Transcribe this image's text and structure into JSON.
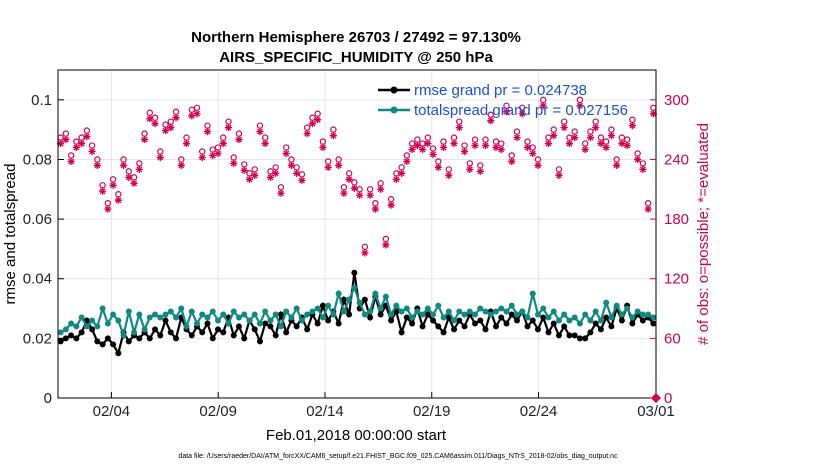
{
  "chart_data": {
    "type": "line",
    "title_line1": "Northern Hemisphere 26703 / 27492 = 97.130%",
    "title_line2": "AIRS_SPECIFIC_HUMIDITY @ 250 hPa",
    "xlabel": "Feb.01,2018 00:00:00 start",
    "ylabel": "rmse and totalspread",
    "ylabel_right": "# of obs: o=possible; *=evaluated",
    "footnote": "data file: /Users/raeder/DAI/ATM_forcXX/CAM6_setup/f.e21.FHIST_BGC.f09_025.CAM6assim.011/Diags_NTrS_2018-02/obs_diag_output.nc",
    "xlim": [
      1.0,
      29.0
    ],
    "xtick_values": [
      3.5,
      8.5,
      13.5,
      18.5,
      23.5,
      29.0
    ],
    "xtick_labels": [
      "02/04",
      "02/09",
      "02/14",
      "02/19",
      "02/24",
      "03/01"
    ],
    "ylim": [
      0,
      0.11
    ],
    "ytick_values": [
      0,
      0.02,
      0.04,
      0.06,
      0.08,
      0.1
    ],
    "ytick_labels": [
      "0",
      "0.02",
      "0.04",
      "0.06",
      "0.08",
      "0.1"
    ],
    "ylim_right": [
      0,
      330
    ],
    "ytick_right_values": [
      0,
      60,
      120,
      180,
      240,
      300
    ],
    "ytick_right_labels": [
      "0",
      "60",
      "120",
      "180",
      "240",
      "300"
    ],
    "series": [
      {
        "name": "rmse grand pr = 0.024738",
        "color": "#000000",
        "marker": "filled-circle",
        "values": [
          0.019,
          0.02,
          0.021,
          0.02,
          0.022,
          0.026,
          0.023,
          0.019,
          0.018,
          0.02,
          0.018,
          0.015,
          0.022,
          0.019,
          0.021,
          0.02,
          0.022,
          0.02,
          0.023,
          0.021,
          0.026,
          0.022,
          0.02,
          0.027,
          0.023,
          0.021,
          0.024,
          0.022,
          0.025,
          0.02,
          0.023,
          0.022,
          0.027,
          0.021,
          0.024,
          0.02,
          0.026,
          0.023,
          0.019,
          0.025,
          0.024,
          0.021,
          0.028,
          0.022,
          0.026,
          0.024,
          0.027,
          0.023,
          0.028,
          0.025,
          0.031,
          0.026,
          0.029,
          0.025,
          0.033,
          0.028,
          0.042,
          0.03,
          0.033,
          0.027,
          0.034,
          0.028,
          0.031,
          0.026,
          0.029,
          0.022,
          0.027,
          0.025,
          0.03,
          0.024,
          0.028,
          0.026,
          0.024,
          0.022,
          0.027,
          0.023,
          0.026,
          0.024,
          0.028,
          0.025,
          0.026,
          0.023,
          0.029,
          0.024,
          0.027,
          0.025,
          0.028,
          0.026,
          0.029,
          0.024,
          0.026,
          0.023,
          0.027,
          0.022,
          0.025,
          0.021,
          0.024,
          0.021,
          0.021,
          0.02,
          0.02,
          0.022,
          0.025,
          0.023,
          0.027,
          0.024,
          0.03,
          0.026,
          0.031,
          0.025,
          0.028,
          0.026,
          0.027,
          0.025
        ]
      },
      {
        "name": "totalspread grand pr = 0.027156",
        "color": "#0f8a82",
        "marker": "filled-circle",
        "values": [
          0.022,
          0.023,
          0.025,
          0.024,
          0.027,
          0.024,
          0.026,
          0.024,
          0.03,
          0.025,
          0.028,
          0.026,
          0.021,
          0.029,
          0.022,
          0.028,
          0.023,
          0.027,
          0.028,
          0.027,
          0.028,
          0.029,
          0.027,
          0.03,
          0.024,
          0.029,
          0.025,
          0.028,
          0.027,
          0.029,
          0.026,
          0.028,
          0.025,
          0.029,
          0.027,
          0.028,
          0.026,
          0.028,
          0.025,
          0.029,
          0.026,
          0.028,
          0.024,
          0.029,
          0.027,
          0.03,
          0.026,
          0.028,
          0.029,
          0.03,
          0.027,
          0.031,
          0.028,
          0.035,
          0.029,
          0.033,
          0.037,
          0.032,
          0.028,
          0.029,
          0.035,
          0.03,
          0.034,
          0.028,
          0.031,
          0.029,
          0.03,
          0.027,
          0.029,
          0.028,
          0.03,
          0.028,
          0.031,
          0.027,
          0.029,
          0.026,
          0.029,
          0.028,
          0.029,
          0.028,
          0.03,
          0.029,
          0.028,
          0.029,
          0.03,
          0.029,
          0.031,
          0.028,
          0.029,
          0.027,
          0.035,
          0.028,
          0.03,
          0.027,
          0.029,
          0.026,
          0.028,
          0.026,
          0.027,
          0.025,
          0.028,
          0.026,
          0.029,
          0.026,
          0.032,
          0.027,
          0.031,
          0.028,
          0.03,
          0.027,
          0.029,
          0.028,
          0.028,
          0.027
        ]
      },
      {
        "name": "obs possible",
        "axis": "right",
        "color": "#d6004f",
        "marker": "open-circle",
        "values": [
          262,
          266,
          244,
          258,
          262,
          269,
          254,
          240,
          214,
          196,
          220,
          205,
          240,
          228,
          222,
          236,
          266,
          287,
          282,
          248,
          275,
          278,
          288,
          240,
          262,
          290,
          292,
          248,
          274,
          250,
          252,
          262,
          278,
          242,
          266,
          235,
          226,
          230,
          274,
          262,
          228,
          232,
          212,
          252,
          240,
          232,
          225,
          272,
          282,
          286,
          258,
          238,
          270,
          240,
          212,
          226,
          217,
          210,
          152,
          210,
          196,
          216,
          160,
          200,
          226,
          232,
          244,
          256,
          260,
          256,
          262,
          251,
          238,
          258,
          230,
          262,
          278,
          254,
          236,
          260,
          234,
          260,
          285,
          258,
          256,
          294,
          244,
          268,
          292,
          258,
          252,
          240,
          300,
          262,
          270,
          230,
          278,
          262,
          268,
          300,
          256,
          268,
          278,
          262,
          258,
          270,
          240,
          262,
          260,
          280,
          246,
          236,
          196,
          292
        ]
      },
      {
        "name": "obs evaluated",
        "axis": "right",
        "color": "#d6004f",
        "marker": "asterisk",
        "values": [
          256,
          260,
          238,
          252,
          256,
          263,
          248,
          234,
          208,
          190,
          214,
          199,
          234,
          222,
          216,
          230,
          260,
          281,
          276,
          242,
          269,
          272,
          282,
          234,
          256,
          284,
          286,
          242,
          268,
          244,
          246,
          256,
          272,
          236,
          260,
          229,
          220,
          224,
          268,
          256,
          222,
          226,
          206,
          246,
          234,
          226,
          219,
          266,
          276,
          280,
          252,
          232,
          264,
          234,
          206,
          220,
          211,
          204,
          146,
          204,
          190,
          210,
          154,
          194,
          220,
          226,
          238,
          250,
          254,
          250,
          256,
          245,
          232,
          252,
          224,
          256,
          272,
          248,
          230,
          254,
          228,
          254,
          279,
          252,
          250,
          288,
          238,
          262,
          286,
          252,
          246,
          234,
          294,
          256,
          264,
          224,
          272,
          256,
          262,
          294,
          250,
          262,
          272,
          256,
          252,
          264,
          234,
          256,
          254,
          274,
          240,
          230,
          190,
          286
        ]
      }
    ]
  }
}
